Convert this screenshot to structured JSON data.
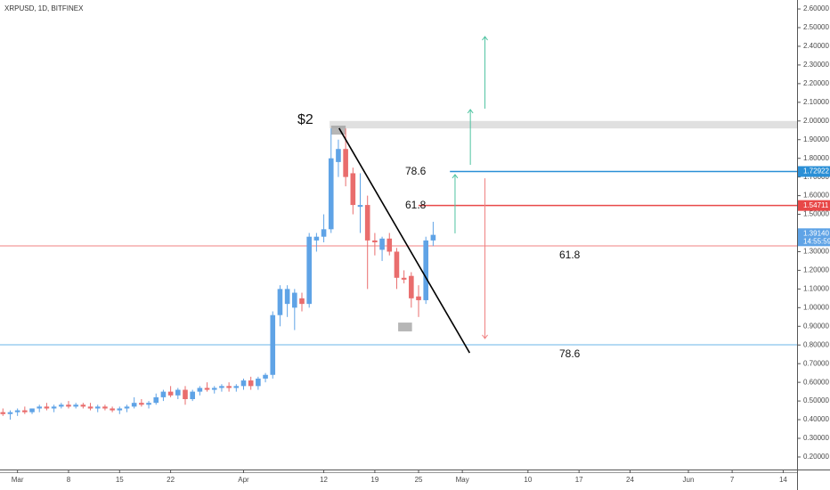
{
  "chart_data": {
    "type": "candlestick",
    "title": "XRPUSD, 1D, BITFINEX",
    "up_color": "#5fa3e6",
    "down_color": "#e96d6d",
    "x": [
      -2,
      -1,
      0,
      1,
      2,
      3,
      4,
      5,
      6,
      7,
      8,
      9,
      10,
      11,
      12,
      13,
      14,
      15,
      16,
      17,
      18,
      19,
      20,
      21,
      22,
      23,
      24,
      25,
      26,
      27,
      28,
      29,
      30,
      31,
      32,
      33,
      34,
      35,
      36,
      37,
      38,
      39,
      40,
      41,
      42,
      43,
      44,
      45,
      46,
      47,
      48,
      49,
      50,
      51,
      52,
      53,
      54,
      55,
      56,
      57
    ],
    "open": [
      0.44,
      0.43,
      0.44,
      0.45,
      0.44,
      0.46,
      0.47,
      0.46,
      0.47,
      0.48,
      0.47,
      0.48,
      0.47,
      0.46,
      0.47,
      0.46,
      0.45,
      0.46,
      0.47,
      0.49,
      0.48,
      0.49,
      0.52,
      0.55,
      0.53,
      0.56,
      0.51,
      0.55,
      0.57,
      0.56,
      0.57,
      0.58,
      0.57,
      0.58,
      0.61,
      0.58,
      0.62,
      0.64,
      0.96,
      1.02,
      1.0,
      1.05,
      1.02,
      1.36,
      1.38,
      1.42,
      1.78,
      1.85,
      1.72,
      1.54,
      1.55,
      1.36,
      1.31,
      1.37,
      1.3,
      1.16,
      1.17,
      1.06,
      1.04,
      1.36
    ],
    "high": [
      0.46,
      0.45,
      0.46,
      0.47,
      0.46,
      0.48,
      0.49,
      0.48,
      0.49,
      0.5,
      0.49,
      0.49,
      0.49,
      0.48,
      0.48,
      0.47,
      0.47,
      0.48,
      0.52,
      0.51,
      0.5,
      0.54,
      0.56,
      0.58,
      0.57,
      0.58,
      0.56,
      0.58,
      0.6,
      0.58,
      0.59,
      0.6,
      0.59,
      0.62,
      0.63,
      0.63,
      0.65,
      0.98,
      1.12,
      1.12,
      1.1,
      1.08,
      1.4,
      1.4,
      1.5,
      1.96,
      1.9,
      1.96,
      1.75,
      1.72,
      1.6,
      1.4,
      1.38,
      1.4,
      1.32,
      1.2,
      1.19,
      1.12,
      1.38,
      1.46
    ],
    "low": [
      0.42,
      0.4,
      0.42,
      0.43,
      0.43,
      0.44,
      0.45,
      0.44,
      0.46,
      0.46,
      0.46,
      0.46,
      0.45,
      0.44,
      0.45,
      0.44,
      0.43,
      0.44,
      0.46,
      0.47,
      0.46,
      0.48,
      0.5,
      0.52,
      0.51,
      0.48,
      0.5,
      0.53,
      0.55,
      0.54,
      0.55,
      0.55,
      0.55,
      0.56,
      0.56,
      0.56,
      0.6,
      0.62,
      0.9,
      0.95,
      0.88,
      0.98,
      1.0,
      1.3,
      1.35,
      1.4,
      1.7,
      1.65,
      1.5,
      1.4,
      1.1,
      1.28,
      1.25,
      1.28,
      1.1,
      1.13,
      1.0,
      0.95,
      1.02,
      1.33
    ],
    "close": [
      0.43,
      0.44,
      0.45,
      0.44,
      0.46,
      0.47,
      0.46,
      0.47,
      0.48,
      0.47,
      0.48,
      0.47,
      0.46,
      0.47,
      0.46,
      0.45,
      0.46,
      0.47,
      0.49,
      0.48,
      0.49,
      0.52,
      0.55,
      0.53,
      0.56,
      0.51,
      0.55,
      0.57,
      0.56,
      0.57,
      0.58,
      0.57,
      0.58,
      0.61,
      0.58,
      0.62,
      0.64,
      0.96,
      1.1,
      1.1,
      1.08,
      1.02,
      1.38,
      1.38,
      1.42,
      1.8,
      1.85,
      1.7,
      1.55,
      1.55,
      1.36,
      1.35,
      1.37,
      1.3,
      1.16,
      1.15,
      1.05,
      1.04,
      1.36,
      1.39
    ],
    "xlim": [
      -2.4,
      106.9
    ],
    "ylim": [
      0.133,
      2.648
    ],
    "xticks": [
      {
        "value": 0,
        "label": "Mar"
      },
      {
        "value": 7,
        "label": "8"
      },
      {
        "value": 14,
        "label": "15"
      },
      {
        "value": 21,
        "label": "22"
      },
      {
        "value": 31,
        "label": "Apr"
      },
      {
        "value": 42,
        "label": "12"
      },
      {
        "value": 49,
        "label": "19"
      },
      {
        "value": 55,
        "label": "25"
      },
      {
        "value": 61,
        "label": "May"
      },
      {
        "value": 70,
        "label": "10"
      },
      {
        "value": 77,
        "label": "17"
      },
      {
        "value": 84,
        "label": "24"
      },
      {
        "value": 92,
        "label": "Jun"
      },
      {
        "value": 98,
        "label": "7"
      },
      {
        "value": 105,
        "label": "14"
      }
    ],
    "yticks": [
      {
        "value": 0.2,
        "label": "0.20000"
      },
      {
        "value": 0.3,
        "label": "0.30000"
      },
      {
        "value": 0.4,
        "label": "0.40000"
      },
      {
        "value": 0.5,
        "label": "0.50000"
      },
      {
        "value": 0.6,
        "label": "0.60000"
      },
      {
        "value": 0.7,
        "label": "0.70000"
      },
      {
        "value": 0.8,
        "label": "0.80000"
      },
      {
        "value": 0.9,
        "label": "0.90000"
      },
      {
        "value": 1.0,
        "label": "1.00000"
      },
      {
        "value": 1.1,
        "label": "1.10000"
      },
      {
        "value": 1.2,
        "label": "1.20000"
      },
      {
        "value": 1.3,
        "label": "1.30000"
      },
      {
        "value": 1.4,
        "label": "1.40000"
      },
      {
        "value": 1.5,
        "label": "1.50000"
      },
      {
        "value": 1.6,
        "label": "1.60000"
      },
      {
        "value": 1.7,
        "label": "1.70000"
      },
      {
        "value": 1.8,
        "label": "1.80000"
      },
      {
        "value": 1.9,
        "label": "1.90000"
      },
      {
        "value": 2.0,
        "label": "2.00000"
      },
      {
        "value": 2.1,
        "label": "2.10000"
      },
      {
        "value": 2.2,
        "label": "2.20000"
      },
      {
        "value": 2.3,
        "label": "2.30000"
      },
      {
        "value": 2.4,
        "label": "2.40000"
      },
      {
        "value": 2.5,
        "label": "2.50000"
      },
      {
        "value": 2.6,
        "label": "2.60000"
      }
    ],
    "hlines": [
      {
        "value": 1.331,
        "color": "#f08080"
      },
      {
        "value": 0.801,
        "color": "#6bb5e8"
      }
    ],
    "levels": [
      {
        "value": 1.72922,
        "x0": 59.3,
        "color": "#2a8fd6"
      },
      {
        "value": 1.54711,
        "x0": 55,
        "color": "#e84848"
      }
    ],
    "zone": {
      "x0": 42.8,
      "y": [
        1.96,
        2.0
      ],
      "color": "#e0e0e0"
    },
    "boxes": [
      {
        "x": [
          43,
          45
        ],
        "y": [
          1.927,
          1.975
        ]
      },
      {
        "x": [
          52.2,
          54.1
        ],
        "y": [
          0.873,
          0.92
        ]
      }
    ],
    "trendline": {
      "x": [
        44.1,
        62
      ],
      "y": [
        1.961,
        0.758
      ]
    },
    "arrows": [
      {
        "x": [
          60,
          60
        ],
        "y": [
          1.398,
          1.713
        ],
        "color": "#4fc3a1"
      },
      {
        "x": [
          62.1,
          62.1
        ],
        "y": [
          1.765,
          2.061
        ],
        "color": "#4fc3a1"
      },
      {
        "x": [
          64.1,
          64.1
        ],
        "y": [
          2.066,
          2.452
        ],
        "color": "#4fc3a1"
      },
      {
        "x": [
          64.1,
          64.1
        ],
        "y": [
          1.693,
          0.835
        ],
        "color": "#f08080"
      }
    ],
    "last_price": {
      "value": 1.3914,
      "label": "1.39140",
      "color": "#5fa3e6"
    },
    "countdown": "14:55:59",
    "annotations": [
      "$2",
      "78.6",
      "61.8",
      "61.8",
      "78.6"
    ]
  }
}
